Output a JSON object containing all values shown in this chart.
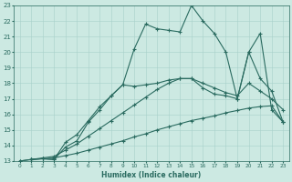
{
  "xlabel": "Humidex (Indice chaleur)",
  "xlim": [
    -0.5,
    23.5
  ],
  "ylim": [
    13,
    23
  ],
  "yticks": [
    13,
    14,
    15,
    16,
    17,
    18,
    19,
    20,
    21,
    22,
    23
  ],
  "xticks": [
    0,
    1,
    2,
    3,
    4,
    5,
    6,
    7,
    8,
    9,
    10,
    11,
    12,
    13,
    14,
    15,
    16,
    17,
    18,
    19,
    20,
    21,
    22,
    23
  ],
  "background_color": "#cce9e2",
  "grid_color": "#a8d0ca",
  "line_color": "#2a6b60",
  "lines": [
    {
      "x": [
        0,
        1,
        2,
        3,
        4,
        5,
        6,
        7,
        8,
        9,
        10,
        11,
        12,
        13,
        14,
        15,
        16,
        17,
        18,
        19,
        20,
        21,
        22,
        23
      ],
      "y": [
        13,
        13.1,
        13.15,
        13.2,
        13.35,
        13.5,
        13.7,
        13.9,
        14.1,
        14.3,
        14.55,
        14.75,
        15.0,
        15.2,
        15.4,
        15.6,
        15.75,
        15.9,
        16.1,
        16.25,
        16.4,
        16.5,
        16.55,
        15.5
      ]
    },
    {
      "x": [
        0,
        1,
        2,
        3,
        4,
        5,
        6,
        7,
        8,
        9,
        10,
        11,
        12,
        13,
        14,
        15,
        16,
        17,
        18,
        19,
        20,
        21,
        22,
        23
      ],
      "y": [
        13,
        13.1,
        13.2,
        13.3,
        13.7,
        14.1,
        14.6,
        15.1,
        15.6,
        16.1,
        16.6,
        17.1,
        17.6,
        18.0,
        18.3,
        18.3,
        18.0,
        17.7,
        17.4,
        17.2,
        18.0,
        17.5,
        17.0,
        16.3
      ]
    },
    {
      "x": [
        1,
        2,
        3,
        4,
        5,
        6,
        7,
        8,
        9,
        10,
        11,
        12,
        13,
        14,
        15,
        16,
        17,
        18,
        19,
        20,
        21,
        22,
        23
      ],
      "y": [
        13.1,
        13.15,
        13.1,
        14.2,
        14.7,
        15.6,
        16.5,
        17.2,
        17.9,
        17.8,
        17.9,
        18.0,
        18.2,
        18.3,
        18.3,
        17.7,
        17.3,
        17.2,
        17.0,
        20.0,
        18.3,
        17.5,
        15.5
      ]
    },
    {
      "x": [
        1,
        2,
        3,
        4,
        5,
        6,
        7,
        8,
        9,
        10,
        11,
        12,
        13,
        14,
        15,
        16,
        17,
        18,
        19,
        20,
        21,
        22,
        23
      ],
      "y": [
        13.1,
        13.15,
        13.1,
        13.9,
        14.3,
        15.5,
        16.3,
        17.2,
        17.9,
        20.2,
        21.8,
        21.5,
        21.4,
        21.3,
        23.0,
        22.0,
        21.2,
        20.0,
        17.0,
        20.0,
        21.2,
        16.3,
        15.5
      ]
    }
  ]
}
